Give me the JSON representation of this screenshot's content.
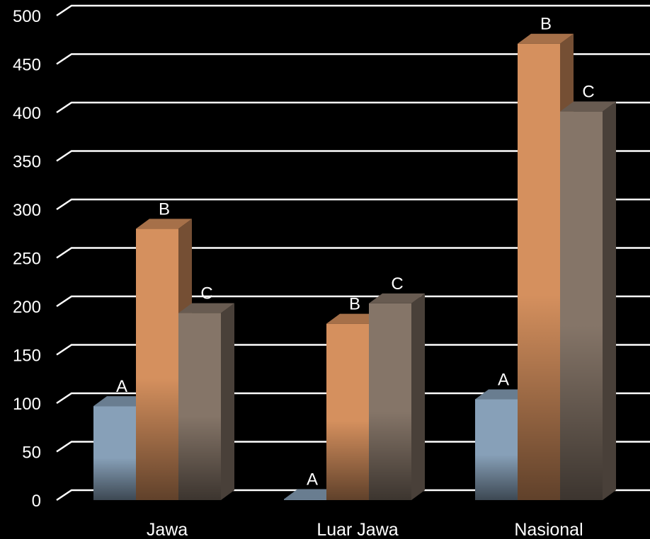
{
  "chart_data": {
    "type": "bar",
    "categories": [
      "Jawa",
      "Luar Jawa",
      "Nasional"
    ],
    "series": [
      {
        "label": "A",
        "values": [
          97,
          1,
          104
        ],
        "color": "#87A0B8"
      },
      {
        "label": "B",
        "values": [
          280,
          182,
          471
        ],
        "color": "#D5905E"
      },
      {
        "label": "C",
        "values": [
          193,
          203,
          401
        ],
        "color": "#857568"
      }
    ],
    "yticks": [
      0,
      50,
      100,
      150,
      200,
      250,
      300,
      350,
      400,
      450,
      500
    ],
    "ylim": [
      0,
      500
    ],
    "grid": true,
    "legend": false,
    "title": "",
    "xlabel": "",
    "ylabel": "",
    "style": "3d-column",
    "background": "#000000",
    "gridline_color": "#FFFFFF",
    "text_color": "#FFFFFF"
  }
}
